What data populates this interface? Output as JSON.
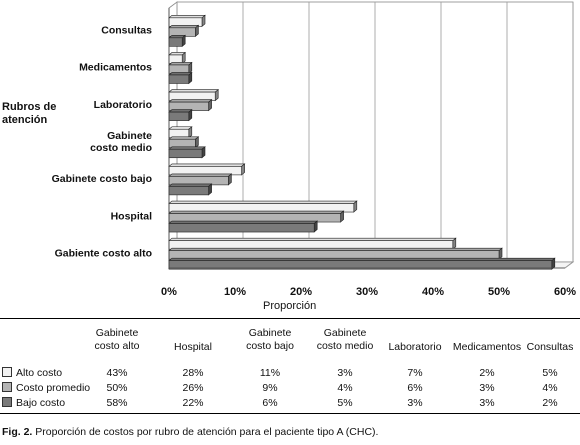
{
  "chart_data": {
    "type": "bar",
    "orientation": "horizontal",
    "style": "3d",
    "categories": [
      "Gabiente costo alto",
      "Hospital",
      "Gabinete costo bajo",
      "Gabinete costo medio",
      "Laboratorio",
      "Medicamentos",
      "Consultas"
    ],
    "series": [
      {
        "name": "Alto costo",
        "values": [
          43,
          28,
          11,
          3,
          7,
          2,
          5
        ],
        "color": "#f2f2f2"
      },
      {
        "name": "Costo promedio",
        "values": [
          50,
          26,
          9,
          4,
          6,
          3,
          4
        ],
        "color": "#b4b4b4"
      },
      {
        "name": "Bajo costo",
        "values": [
          58,
          22,
          6,
          5,
          3,
          3,
          2
        ],
        "color": "#7a7a7a"
      }
    ],
    "xlabel": "Proporción",
    "ylabel": "Rubros de atención",
    "xlim": [
      0,
      60
    ],
    "xticks": [
      "0%",
      "10%",
      "20%",
      "30%",
      "40%",
      "50%",
      "60%"
    ],
    "grid": true
  },
  "table": {
    "headers": [
      "Gabinete costo alto",
      "Hospital",
      "Gabinete costo bajo",
      "Gabinete costo medio",
      "Laboratorio",
      "Medicamentos",
      "Consultas"
    ],
    "rows": [
      {
        "label": "Alto costo",
        "values": [
          "43%",
          "28%",
          "11%",
          "3%",
          "7%",
          "2%",
          "5%"
        ]
      },
      {
        "label": "Costo promedio",
        "values": [
          "50%",
          "26%",
          "9%",
          "4%",
          "6%",
          "3%",
          "4%"
        ]
      },
      {
        "label": "Bajo costo",
        "values": [
          "58%",
          "22%",
          "6%",
          "5%",
          "3%",
          "3%",
          "2%"
        ]
      }
    ]
  },
  "caption": {
    "prefix": "Fig. 2.",
    "text": "Proporción de costos por rubro de atención para el paciente tipo A (CHC)."
  }
}
